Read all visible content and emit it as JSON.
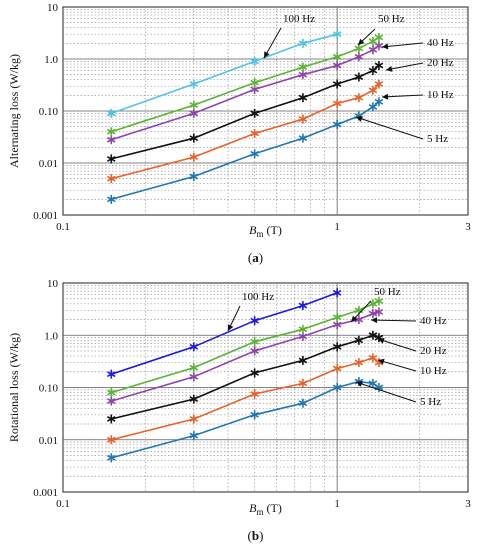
{
  "colors": {
    "5 Hz": "#1f77b4",
    "10 Hz": "#e8622a",
    "20 Hz": "#111111",
    "40 Hz": "#8e44ad",
    "50 Hz": "#5bb432",
    "100 Hz": "#4fc3e8",
    "100 Hz (b)": "#1a1adb"
  },
  "chart_data": [
    {
      "type": "line",
      "panel_label": "(a)",
      "xlabel": "B_m (T)",
      "xlabel_main": "B",
      "xlabel_sub": "m",
      "xlabel_unit": " (T)",
      "ylabel": "Alternating loss (W/kg)",
      "x_scale": "log",
      "y_scale": "log",
      "xlim": [
        0.1,
        3
      ],
      "ylim": [
        0.001,
        10
      ],
      "x_ticks": [
        "0.1",
        "1",
        "3"
      ],
      "y_ticks": [
        "0.001",
        "0.01",
        "0.10",
        "1.0",
        "10"
      ],
      "grid": true,
      "series": [
        {
          "name": "5 Hz",
          "x": [
            0.15,
            0.3,
            0.5,
            0.75,
            1.0,
            1.2,
            1.35,
            1.42
          ],
          "y": [
            0.002,
            0.0055,
            0.015,
            0.03,
            0.055,
            0.08,
            0.12,
            0.15
          ]
        },
        {
          "name": "10 Hz",
          "x": [
            0.15,
            0.3,
            0.5,
            0.75,
            1.0,
            1.2,
            1.35,
            1.42
          ],
          "y": [
            0.005,
            0.013,
            0.037,
            0.07,
            0.14,
            0.18,
            0.25,
            0.33
          ]
        },
        {
          "name": "20 Hz",
          "x": [
            0.15,
            0.3,
            0.5,
            0.75,
            1.0,
            1.2,
            1.35,
            1.42
          ],
          "y": [
            0.012,
            0.03,
            0.09,
            0.18,
            0.33,
            0.45,
            0.6,
            0.75
          ]
        },
        {
          "name": "40 Hz",
          "x": [
            0.15,
            0.3,
            0.5,
            0.75,
            1.0,
            1.2,
            1.35,
            1.42
          ],
          "y": [
            0.028,
            0.09,
            0.26,
            0.5,
            0.75,
            1.1,
            1.5,
            1.8
          ]
        },
        {
          "name": "50 Hz",
          "x": [
            0.15,
            0.3,
            0.5,
            0.75,
            1.0,
            1.2,
            1.35,
            1.42
          ],
          "y": [
            0.04,
            0.13,
            0.35,
            0.7,
            1.1,
            1.6,
            2.2,
            2.6
          ]
        },
        {
          "name": "100 Hz",
          "x": [
            0.15,
            0.3,
            0.5,
            0.75,
            1.0
          ],
          "y": [
            0.09,
            0.33,
            0.9,
            2.0,
            3.0
          ]
        }
      ],
      "annotations": [
        "100 Hz",
        "50 Hz",
        "40 Hz",
        "20 Hz",
        "10 Hz",
        "5 Hz"
      ]
    },
    {
      "type": "line",
      "panel_label": "(b)",
      "xlabel": "B_m (T)",
      "xlabel_main": "B",
      "xlabel_sub": "m",
      "xlabel_unit": " (T)",
      "ylabel": "Rotational loss (W/kg)",
      "x_scale": "log",
      "y_scale": "log",
      "xlim": [
        0.1,
        3
      ],
      "ylim": [
        0.001,
        10
      ],
      "x_ticks": [
        "0.1",
        "1",
        "3"
      ],
      "y_ticks": [
        "0.001",
        "0.01",
        "0.10",
        "1.0",
        "10"
      ],
      "grid": true,
      "series": [
        {
          "name": "5 Hz",
          "x": [
            0.15,
            0.3,
            0.5,
            0.75,
            1.0,
            1.2,
            1.35,
            1.42
          ],
          "y": [
            0.0045,
            0.012,
            0.03,
            0.05,
            0.1,
            0.13,
            0.12,
            0.1
          ]
        },
        {
          "name": "10 Hz",
          "x": [
            0.15,
            0.3,
            0.5,
            0.75,
            1.0,
            1.2,
            1.35,
            1.42
          ],
          "y": [
            0.01,
            0.025,
            0.075,
            0.12,
            0.23,
            0.3,
            0.37,
            0.3
          ]
        },
        {
          "name": "20 Hz",
          "x": [
            0.15,
            0.3,
            0.5,
            0.75,
            1.0,
            1.2,
            1.35,
            1.42
          ],
          "y": [
            0.025,
            0.06,
            0.19,
            0.33,
            0.6,
            0.8,
            1.0,
            0.9
          ]
        },
        {
          "name": "40 Hz",
          "x": [
            0.15,
            0.3,
            0.5,
            0.75,
            1.0,
            1.2,
            1.35,
            1.42
          ],
          "y": [
            0.055,
            0.16,
            0.5,
            0.95,
            1.6,
            2.0,
            2.6,
            2.8
          ]
        },
        {
          "name": "50 Hz",
          "x": [
            0.15,
            0.3,
            0.5,
            0.75,
            1.0,
            1.2,
            1.35,
            1.42
          ],
          "y": [
            0.08,
            0.24,
            0.75,
            1.3,
            2.2,
            3.0,
            4.0,
            4.5
          ]
        },
        {
          "name": "100 Hz",
          "x": [
            0.15,
            0.3,
            0.5,
            0.75,
            1.0
          ],
          "y": [
            0.18,
            0.6,
            1.9,
            3.7,
            6.5
          ]
        }
      ],
      "annotations": [
        "100 Hz",
        "50 Hz",
        "40 Hz",
        "20 Hz",
        "10 Hz",
        "5 Hz"
      ]
    }
  ]
}
